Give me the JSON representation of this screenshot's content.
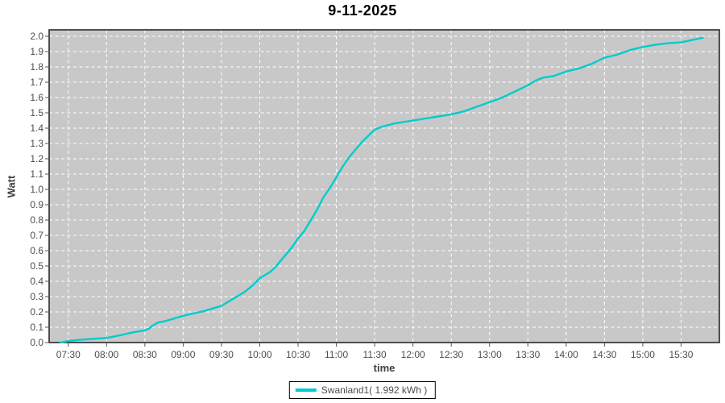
{
  "title": "9-11-2025",
  "colors": {
    "page_bg": "#FFFFFF",
    "plot_bg": "#C8C8C8",
    "grid": "#FFFFFF",
    "frame": "#2A2A2A",
    "tick_mark": "#555555",
    "tick_text": "#4D4D4D",
    "axis_title_text": "#404040",
    "title_text": "#000000",
    "series_line": "#00CCCC"
  },
  "chart_data": {
    "type": "line",
    "title": "9-11-2025",
    "xlabel": "time",
    "ylabel": "Watt",
    "x_domain": [
      "07:15",
      "16:00"
    ],
    "ylim": [
      0.0,
      2.04
    ],
    "y_tick_step": 0.1,
    "grid": "white dashed gridlines on gray plot background",
    "legend_position": "bottom-center",
    "x_ticks": [
      "07:30",
      "08:00",
      "08:30",
      "09:00",
      "09:30",
      "10:00",
      "10:30",
      "11:00",
      "11:30",
      "12:00",
      "12:30",
      "13:00",
      "13:30",
      "14:00",
      "14:30",
      "15:00",
      "15:30"
    ],
    "y_ticks": [
      "0.0",
      "0.1",
      "0.2",
      "0.3",
      "0.4",
      "0.5",
      "0.6",
      "0.7",
      "0.8",
      "0.9",
      "1.0",
      "1.1",
      "1.2",
      "1.3",
      "1.4",
      "1.5",
      "1.6",
      "1.7",
      "1.8",
      "1.9",
      "2.0"
    ],
    "series": [
      {
        "name": "Swanland1( 1.992 kWh )",
        "color": "#00CCCC",
        "total_kwh": "1.992 kWh",
        "points": [
          [
            "07:24",
            0.0
          ],
          [
            "07:30",
            0.01
          ],
          [
            "07:42",
            0.02
          ],
          [
            "08:00",
            0.03
          ],
          [
            "08:06",
            0.04
          ],
          [
            "08:12",
            0.05
          ],
          [
            "08:20",
            0.065
          ],
          [
            "08:30",
            0.08
          ],
          [
            "08:33",
            0.09
          ],
          [
            "08:36",
            0.11
          ],
          [
            "08:40",
            0.13
          ],
          [
            "08:46",
            0.14
          ],
          [
            "08:52",
            0.155
          ],
          [
            "09:00",
            0.175
          ],
          [
            "09:08",
            0.19
          ],
          [
            "09:16",
            0.205
          ],
          [
            "09:24",
            0.225
          ],
          [
            "09:30",
            0.24
          ],
          [
            "09:36",
            0.27
          ],
          [
            "09:42",
            0.3
          ],
          [
            "09:48",
            0.33
          ],
          [
            "09:54",
            0.37
          ],
          [
            "10:00",
            0.42
          ],
          [
            "10:04",
            0.44
          ],
          [
            "10:08",
            0.46
          ],
          [
            "10:12",
            0.49
          ],
          [
            "10:16",
            0.53
          ],
          [
            "10:20",
            0.57
          ],
          [
            "10:25",
            0.62
          ],
          [
            "10:30",
            0.68
          ],
          [
            "10:35",
            0.73
          ],
          [
            "10:40",
            0.8
          ],
          [
            "10:45",
            0.87
          ],
          [
            "10:50",
            0.95
          ],
          [
            "10:55",
            1.01
          ],
          [
            "11:00",
            1.08
          ],
          [
            "11:05",
            1.15
          ],
          [
            "11:10",
            1.21
          ],
          [
            "11:15",
            1.26
          ],
          [
            "11:20",
            1.31
          ],
          [
            "11:25",
            1.35
          ],
          [
            "11:30",
            1.39
          ],
          [
            "11:36",
            1.41
          ],
          [
            "11:45",
            1.43
          ],
          [
            "12:00",
            1.45
          ],
          [
            "12:15",
            1.47
          ],
          [
            "12:30",
            1.49
          ],
          [
            "12:40",
            1.51
          ],
          [
            "12:50",
            1.54
          ],
          [
            "13:00",
            1.57
          ],
          [
            "13:10",
            1.6
          ],
          [
            "13:20",
            1.64
          ],
          [
            "13:30",
            1.68
          ],
          [
            "13:36",
            1.71
          ],
          [
            "13:42",
            1.73
          ],
          [
            "13:50",
            1.74
          ],
          [
            "14:00",
            1.77
          ],
          [
            "14:10",
            1.79
          ],
          [
            "14:20",
            1.82
          ],
          [
            "14:30",
            1.86
          ],
          [
            "14:40",
            1.88
          ],
          [
            "14:50",
            1.91
          ],
          [
            "15:00",
            1.93
          ],
          [
            "15:10",
            1.945
          ],
          [
            "15:20",
            1.955
          ],
          [
            "15:30",
            1.96
          ],
          [
            "15:38",
            1.975
          ],
          [
            "15:47",
            1.99
          ]
        ]
      }
    ]
  },
  "legend": {
    "items": [
      {
        "label": "Swanland1( 1.992 kWh )",
        "color": "#00CCCC"
      }
    ]
  }
}
